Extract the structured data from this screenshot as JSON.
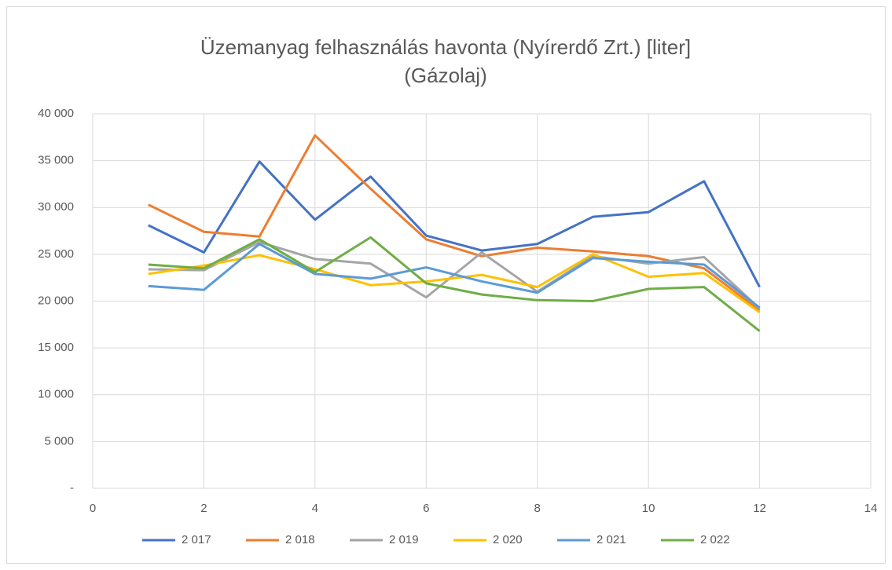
{
  "chart_data": {
    "type": "line",
    "title": "Üzemanyag felhasználás havonta (Nyírerdő Zrt.) [liter]",
    "subtitle": "(Gázolaj)",
    "x": [
      1,
      2,
      3,
      4,
      5,
      6,
      7,
      8,
      9,
      10,
      11,
      12
    ],
    "series": [
      {
        "name": "2 017",
        "color": "#4472c4",
        "values": [
          28100,
          25200,
          34900,
          28700,
          33300,
          27000,
          25400,
          26100,
          29000,
          29500,
          32800,
          21500
        ]
      },
      {
        "name": "2 018",
        "color": "#ed7d31",
        "values": [
          30300,
          27400,
          26900,
          37700,
          32000,
          26600,
          24800,
          25700,
          25300,
          24800,
          23500,
          19000
        ]
      },
      {
        "name": "2 019",
        "color": "#a5a5a5",
        "values": [
          23400,
          23300,
          26300,
          24500,
          24000,
          20400,
          25200,
          21000,
          24800,
          24000,
          24700,
          19200
        ]
      },
      {
        "name": "2 020",
        "color": "#ffc000",
        "values": [
          22900,
          23800,
          24900,
          23400,
          21700,
          22100,
          22800,
          21500,
          25000,
          22600,
          23000,
          18800
        ]
      },
      {
        "name": "2 021",
        "color": "#5b9bd5",
        "values": [
          21600,
          21200,
          26100,
          22900,
          22400,
          23600,
          22100,
          20900,
          24600,
          24200,
          23900,
          19300
        ]
      },
      {
        "name": "2 022",
        "color": "#70ad47",
        "values": [
          23900,
          23500,
          26600,
          23100,
          26800,
          21900,
          20700,
          20100,
          20000,
          21300,
          21500,
          16800
        ]
      }
    ],
    "xlim": [
      0,
      14
    ],
    "xticks": [
      0,
      2,
      4,
      6,
      8,
      10,
      12,
      14
    ],
    "ylim": [
      0,
      40000
    ],
    "yticks": [
      {
        "value": 0,
        "label": "-"
      },
      {
        "value": 5000,
        "label": "5 000"
      },
      {
        "value": 10000,
        "label": "10 000"
      },
      {
        "value": 15000,
        "label": "15 000"
      },
      {
        "value": 20000,
        "label": "20 000"
      },
      {
        "value": 25000,
        "label": "25 000"
      },
      {
        "value": 30000,
        "label": "30 000"
      },
      {
        "value": 35000,
        "label": "35 000"
      },
      {
        "value": 40000,
        "label": "40 000"
      }
    ],
    "grid": true,
    "legend": "bottom"
  }
}
